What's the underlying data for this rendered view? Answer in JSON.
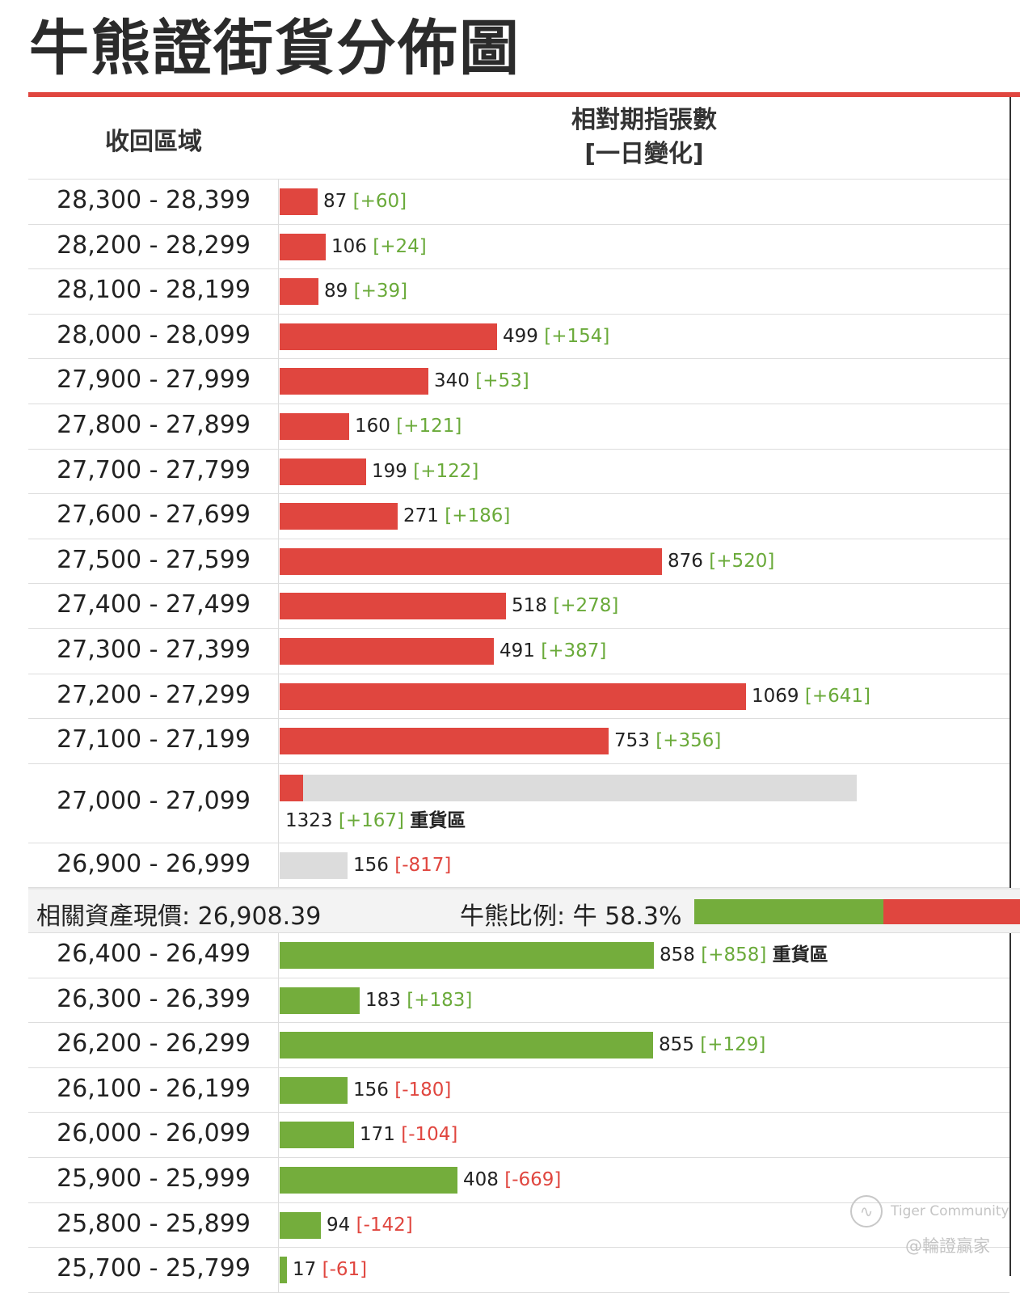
{
  "title": "牛熊證街貨分佈圖",
  "header": {
    "range_label": "收回區域",
    "value_label_1": "相對期指張數",
    "value_label_2": "[一日變化]"
  },
  "price": {
    "label": "相關資產現價:",
    "value": "26,908.39"
  },
  "ratio": {
    "label": "牛熊比例:",
    "side": "牛",
    "value": "58.3%",
    "bull_fraction": 0.583
  },
  "colors": {
    "bear": "#e0463f",
    "bull": "#74ad3c",
    "neutral": "#dcdcdc",
    "positive": "#6aaa3a",
    "negative": "#e0463f"
  },
  "watermark": {
    "brand": "Tiger Community",
    "account": "@輪證贏家"
  },
  "chart_data": {
    "type": "bar",
    "bear_rows": [
      {
        "range": "28,300 - 28,399",
        "value": 87,
        "change": "[+60]"
      },
      {
        "range": "28,200 - 28,299",
        "value": 106,
        "change": "[+24]"
      },
      {
        "range": "28,100 - 28,199",
        "value": 89,
        "change": "[+39]"
      },
      {
        "range": "28,000 - 28,099",
        "value": 499,
        "change": "[+154]"
      },
      {
        "range": "27,900 - 27,999",
        "value": 340,
        "change": "[+53]"
      },
      {
        "range": "27,800 - 27,899",
        "value": 160,
        "change": "[+121]"
      },
      {
        "range": "27,700 - 27,799",
        "value": 199,
        "change": "[+122]"
      },
      {
        "range": "27,600 - 27,699",
        "value": 271,
        "change": "[+186]"
      },
      {
        "range": "27,500 - 27,599",
        "value": 876,
        "change": "[+520]"
      },
      {
        "range": "27,400 - 27,499",
        "value": 518,
        "change": "[+278]"
      },
      {
        "range": "27,300 - 27,399",
        "value": 491,
        "change": "[+387]"
      },
      {
        "range": "27,200 - 27,299",
        "value": 1069,
        "change": "[+641]"
      },
      {
        "range": "27,100 - 27,199",
        "value": 753,
        "change": "[+356]"
      },
      {
        "range": "27,000 - 27,099",
        "value": 1323,
        "change": "[+167]",
        "tag": "重貨區",
        "colored_value": 115
      },
      {
        "range": "26,900 - 26,999",
        "value": 156,
        "change": "[-817]",
        "colored_value": 0
      }
    ],
    "bull_rows": [
      {
        "range": "26,400 - 26,499",
        "value": 858,
        "change": "[+858]",
        "tag": "重貨區"
      },
      {
        "range": "26,300 - 26,399",
        "value": 183,
        "change": "[+183]"
      },
      {
        "range": "26,200 - 26,299",
        "value": 855,
        "change": "[+129]"
      },
      {
        "range": "26,100 - 26,199",
        "value": 156,
        "change": "[-180]"
      },
      {
        "range": "26,000 - 26,099",
        "value": 171,
        "change": "[-104]"
      },
      {
        "range": "25,900 - 25,999",
        "value": 408,
        "change": "[-669]"
      },
      {
        "range": "25,800 - 25,899",
        "value": 94,
        "change": "[-142]"
      },
      {
        "range": "25,700 - 25,799",
        "value": 17,
        "change": "[-61]"
      }
    ]
  }
}
